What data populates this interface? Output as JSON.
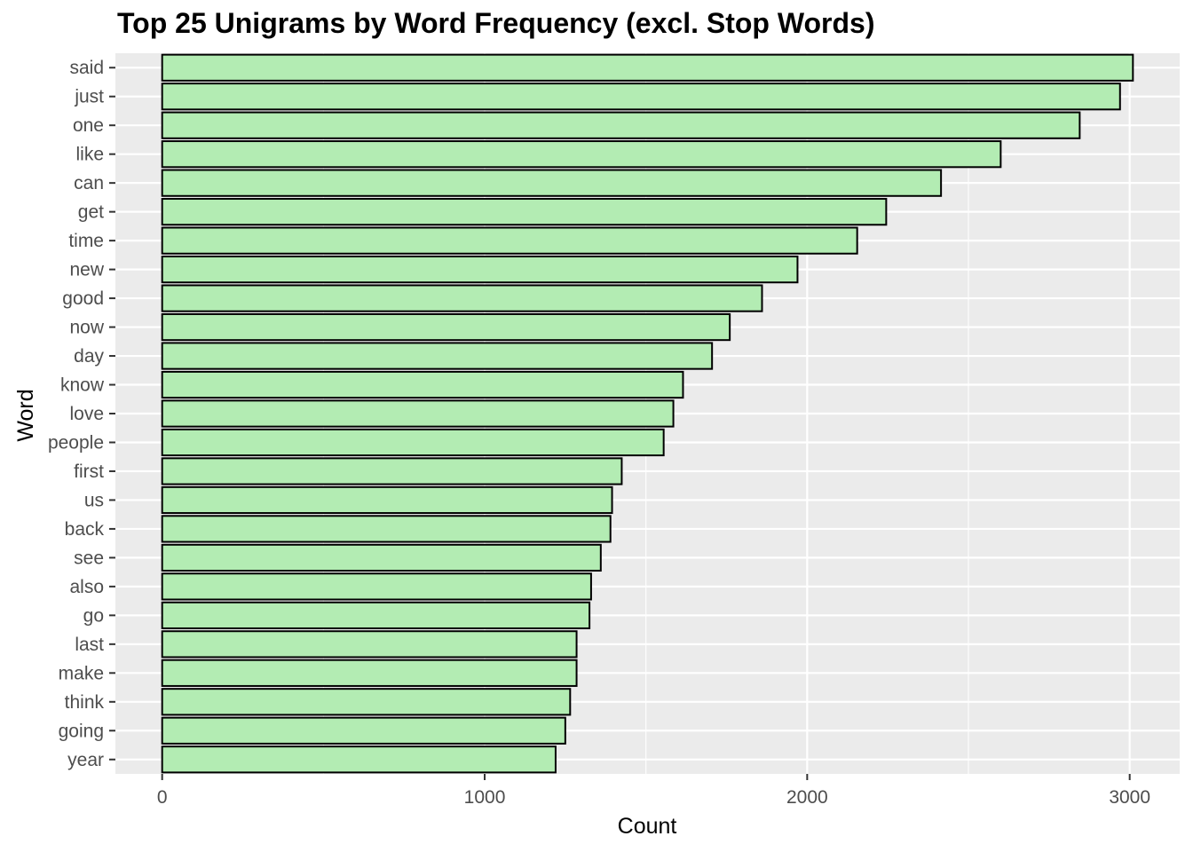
{
  "chart_data": {
    "type": "bar",
    "orientation": "horizontal",
    "title": "Top 25 Unigrams by Word Frequency (excl. Stop Words)",
    "xlabel": "Count",
    "ylabel": "Word",
    "categories": [
      "said",
      "just",
      "one",
      "like",
      "can",
      "get",
      "time",
      "new",
      "good",
      "now",
      "day",
      "know",
      "love",
      "people",
      "first",
      "us",
      "back",
      "see",
      "also",
      "go",
      "last",
      "make",
      "think",
      "going",
      "year"
    ],
    "values": [
      3010,
      2970,
      2845,
      2600,
      2415,
      2245,
      2155,
      1970,
      1860,
      1760,
      1705,
      1615,
      1585,
      1555,
      1425,
      1395,
      1390,
      1360,
      1330,
      1325,
      1285,
      1285,
      1265,
      1250,
      1220
    ],
    "x_ticks": [
      "0",
      "1000",
      "2000",
      "3000"
    ],
    "xlim": [
      -145,
      3155
    ],
    "grid": true,
    "bar_fill": "#b3ecb3",
    "bar_stroke": "#000000",
    "panel_background": "#ebebeb"
  }
}
